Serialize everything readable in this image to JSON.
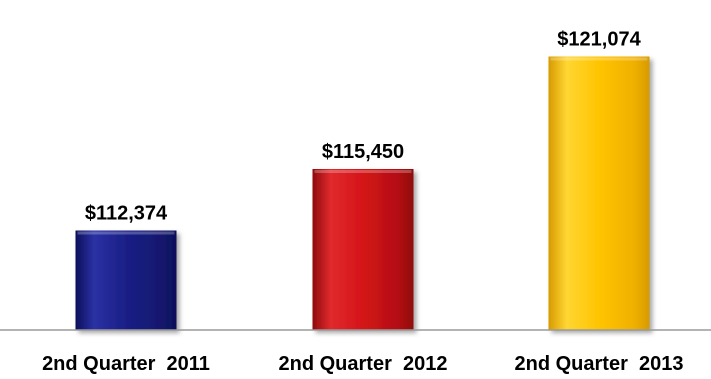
{
  "chart_data": {
    "type": "bar",
    "categories": [
      "2nd Quarter  2011",
      "2nd Quarter  2012",
      "2nd Quarter  2013"
    ],
    "values": [
      112374,
      115450,
      121074
    ],
    "value_labels": [
      "$112,374",
      "$115,450",
      "$121,074"
    ],
    "title": "",
    "xlabel": "",
    "ylabel": "",
    "ylim": [
      107400,
      121800
    ],
    "grid": false,
    "legend": "none",
    "colors": [
      "#1a1f86",
      "#d41418",
      "#ffc400"
    ],
    "color_shades": {
      "navy": [
        "#3a40b0",
        "#0c0f5a"
      ],
      "red": [
        "#ef3a3a",
        "#8f0a0d"
      ],
      "gold": [
        "#ffe066",
        "#d69a00"
      ]
    },
    "axis_color": "#9a9a9a"
  }
}
